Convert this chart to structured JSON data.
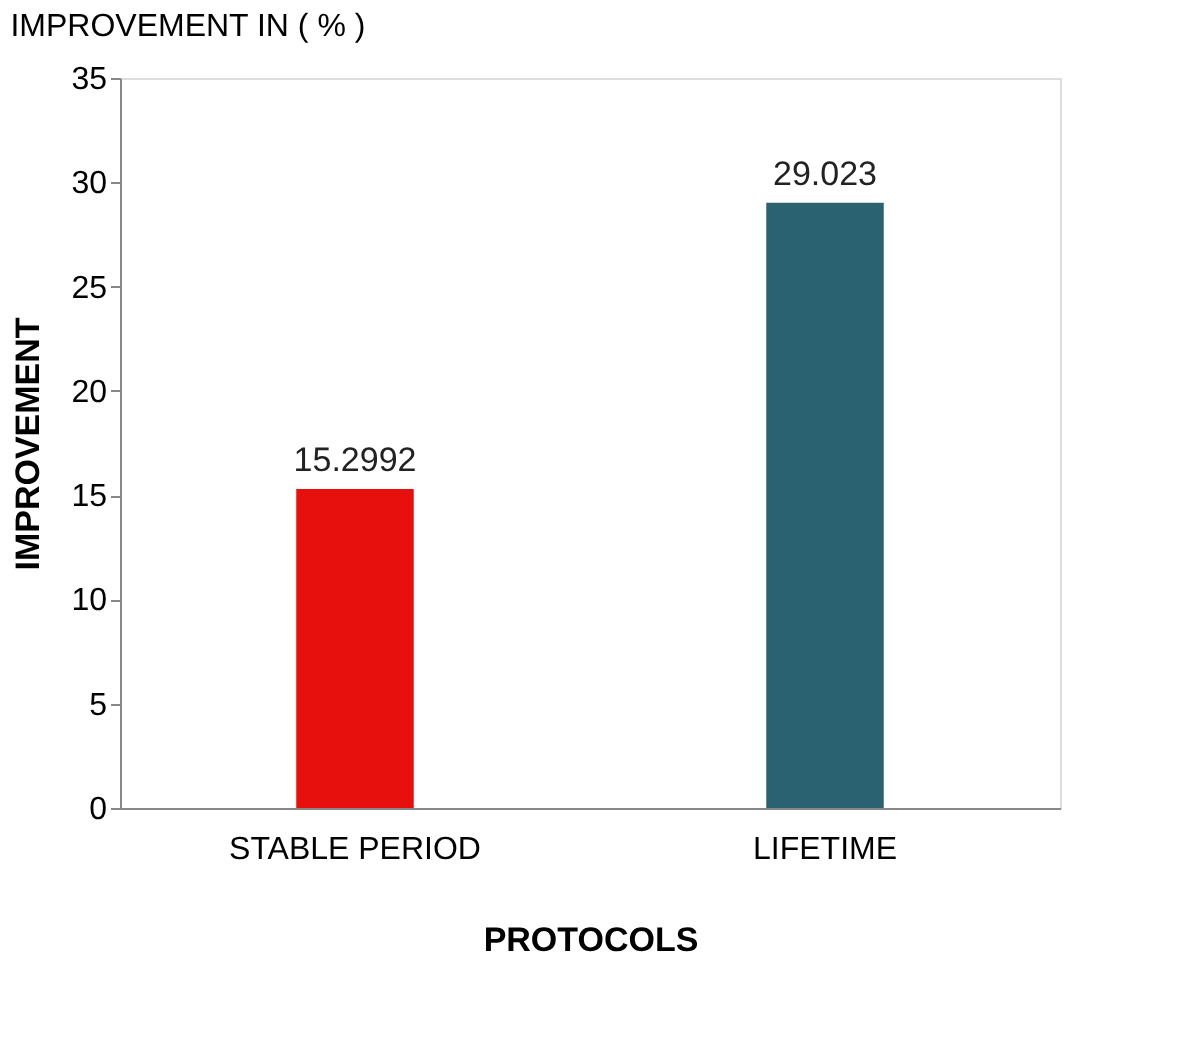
{
  "chart_data": {
    "type": "bar",
    "title": "IMPROVEMENT IN ( % )",
    "xlabel": "PROTOCOLS",
    "ylabel": "IMPROVEMENT",
    "categories": [
      "STABLE PERIOD",
      "LIFETIME"
    ],
    "values": [
      15.2992,
      29.023
    ],
    "colors": [
      "#e8100c",
      "#2a6272"
    ],
    "ylim": [
      0,
      35
    ],
    "yticks": [
      0,
      5,
      10,
      15,
      20,
      25,
      30,
      35
    ],
    "grid": false,
    "data_labels": true
  }
}
